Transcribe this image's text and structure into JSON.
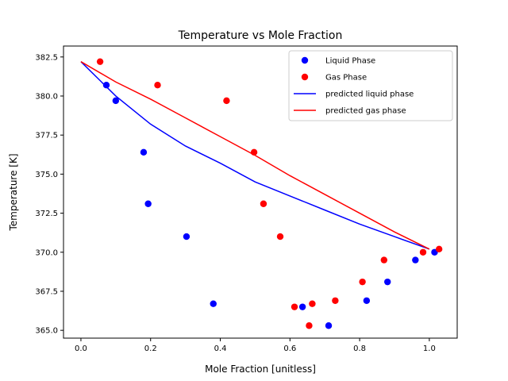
{
  "chart_data": {
    "type": "scatter",
    "title": "Temperature vs Mole Fraction",
    "xlabel": "Mole Fraction [unitless]",
    "ylabel": "Temperature [K]",
    "xlim": [
      -0.05,
      1.08
    ],
    "ylim": [
      364.5,
      383.2
    ],
    "xticks": [
      0.0,
      0.2,
      0.4,
      0.6,
      0.8,
      1.0
    ],
    "xtick_labels": [
      "0.0",
      "0.2",
      "0.4",
      "0.6",
      "0.8",
      "1.0"
    ],
    "yticks": [
      365.0,
      367.5,
      370.0,
      372.5,
      375.0,
      377.5,
      380.0,
      382.5
    ],
    "ytick_labels": [
      "365.0",
      "367.5",
      "370.0",
      "372.5",
      "375.0",
      "377.5",
      "380.0",
      "382.5"
    ],
    "grid": false,
    "legend_position": "top-right",
    "series": [
      {
        "name": "Liquid Phase",
        "kind": "scatter",
        "color": "#0000ff",
        "points": [
          {
            "x": 0.073,
            "y": 380.7
          },
          {
            "x": 0.1,
            "y": 379.7
          },
          {
            "x": 0.18,
            "y": 376.4
          },
          {
            "x": 0.193,
            "y": 373.1
          },
          {
            "x": 0.303,
            "y": 371.0
          },
          {
            "x": 0.38,
            "y": 366.7
          },
          {
            "x": 0.636,
            "y": 366.5
          },
          {
            "x": 0.711,
            "y": 365.3
          },
          {
            "x": 0.82,
            "y": 366.9
          },
          {
            "x": 0.88,
            "y": 368.1
          },
          {
            "x": 0.96,
            "y": 369.5
          },
          {
            "x": 1.015,
            "y": 370.0
          }
        ]
      },
      {
        "name": "Gas Phase",
        "kind": "scatter",
        "color": "#ff0000",
        "points": [
          {
            "x": 0.055,
            "y": 382.2
          },
          {
            "x": 0.22,
            "y": 380.7
          },
          {
            "x": 0.418,
            "y": 379.7
          },
          {
            "x": 0.497,
            "y": 376.4
          },
          {
            "x": 0.524,
            "y": 373.1
          },
          {
            "x": 0.572,
            "y": 371.0
          },
          {
            "x": 0.613,
            "y": 366.5
          },
          {
            "x": 0.655,
            "y": 365.3
          },
          {
            "x": 0.664,
            "y": 366.7
          },
          {
            "x": 0.73,
            "y": 366.9
          },
          {
            "x": 0.808,
            "y": 368.1
          },
          {
            "x": 0.87,
            "y": 369.5
          },
          {
            "x": 0.982,
            "y": 370.0
          },
          {
            "x": 1.028,
            "y": 370.2
          }
        ]
      },
      {
        "name": "predicted liquid phase",
        "kind": "line",
        "color": "#0000ff",
        "points": [
          {
            "x": 0.0,
            "y": 382.2
          },
          {
            "x": 0.1,
            "y": 380.0
          },
          {
            "x": 0.2,
            "y": 378.2
          },
          {
            "x": 0.3,
            "y": 376.8
          },
          {
            "x": 0.4,
            "y": 375.7
          },
          {
            "x": 0.5,
            "y": 374.5
          },
          {
            "x": 0.6,
            "y": 373.6
          },
          {
            "x": 0.7,
            "y": 372.7
          },
          {
            "x": 0.8,
            "y": 371.8
          },
          {
            "x": 0.9,
            "y": 371.0
          },
          {
            "x": 1.0,
            "y": 370.2
          }
        ]
      },
      {
        "name": "predicted gas phase",
        "kind": "line",
        "color": "#ff0000",
        "points": [
          {
            "x": 0.0,
            "y": 382.2
          },
          {
            "x": 0.1,
            "y": 380.9
          },
          {
            "x": 0.2,
            "y": 379.8
          },
          {
            "x": 0.3,
            "y": 378.6
          },
          {
            "x": 0.4,
            "y": 377.4
          },
          {
            "x": 0.5,
            "y": 376.2
          },
          {
            "x": 0.6,
            "y": 374.9
          },
          {
            "x": 0.7,
            "y": 373.7
          },
          {
            "x": 0.8,
            "y": 372.5
          },
          {
            "x": 0.9,
            "y": 371.3
          },
          {
            "x": 1.0,
            "y": 370.2
          }
        ]
      }
    ]
  }
}
